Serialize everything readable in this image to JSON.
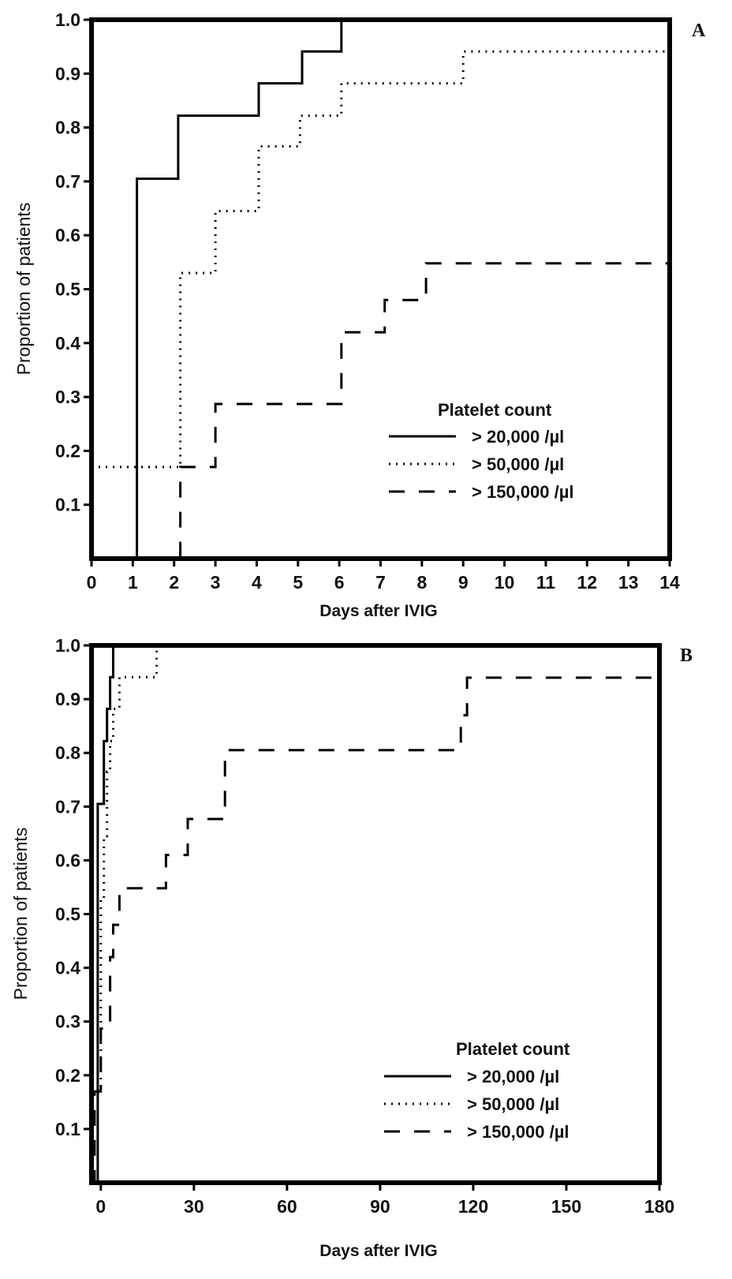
{
  "chart_data": [
    {
      "type": "line",
      "panel_label": "A",
      "xlabel": "Days after IVIG",
      "ylabel": "Proportion of patients",
      "xlim": [
        0,
        14
      ],
      "ylim": [
        0,
        1.0
      ],
      "xticks": [
        "0",
        "1",
        "2",
        "3",
        "4",
        "5",
        "6",
        "7",
        "8",
        "9",
        "10",
        "11",
        "12",
        "13",
        "14"
      ],
      "yticks": [
        "0.1",
        "0.2",
        "0.3",
        "0.4",
        "0.5",
        "0.6",
        "0.7",
        "0.8",
        "0.9",
        "1.0"
      ],
      "grid": false,
      "legend": {
        "title": "Platelet count",
        "position": "bottom-right",
        "entries": [
          "> 20,000 /µl",
          "> 50,000 /µl",
          "> 150,000 /µl"
        ]
      },
      "series": [
        {
          "name": "> 20,000 /µl",
          "style": "solid",
          "x": [
            0,
            1.1,
            2.1,
            4.05,
            5.1,
            6.05,
            14
          ],
          "y": [
            0,
            0.705,
            0.822,
            0.882,
            0.941,
            1.0,
            1.0
          ]
        },
        {
          "name": "> 50,000 /µl",
          "style": "dotted",
          "x": [
            0,
            2.15,
            3.0,
            4.05,
            5.05,
            6.05,
            9.0,
            14
          ],
          "y": [
            0.17,
            0.53,
            0.645,
            0.765,
            0.822,
            0.882,
            0.941,
            0.941
          ]
        },
        {
          "name": "> 150,000 /µl",
          "style": "dashed",
          "x": [
            0,
            2.15,
            3.0,
            6.05,
            7.1,
            8.1,
            14
          ],
          "y": [
            0,
            0.17,
            0.287,
            0.42,
            0.48,
            0.548,
            0.548
          ]
        }
      ]
    },
    {
      "type": "line",
      "panel_label": "B",
      "xlabel": "Days after IVIG",
      "ylabel": "Proportion of patients",
      "xlim": [
        -3,
        180
      ],
      "ylim": [
        0,
        1.0
      ],
      "xticks": [
        "0",
        "30",
        "60",
        "90",
        "120",
        "150",
        "180"
      ],
      "yticks": [
        "0.1",
        "0.2",
        "0.3",
        "0.4",
        "0.5",
        "0.6",
        "0.7",
        "0.8",
        "0.9",
        "1.0"
      ],
      "grid": false,
      "legend": {
        "title": "Platelet count",
        "position": "bottom-right",
        "entries": [
          "> 20,000 /µl",
          "> 50,000 /µl",
          "> 150,000 /µl"
        ]
      },
      "series": [
        {
          "name": "> 20,000 /µl",
          "style": "solid",
          "x": [
            -3,
            -2,
            -1,
            1,
            2,
            3,
            4,
            180
          ],
          "y": [
            0,
            0,
            0.705,
            0.822,
            0.882,
            0.941,
            1.0,
            1.0
          ]
        },
        {
          "name": "> 50,000 /µl",
          "style": "dotted",
          "x": [
            -3,
            -1,
            0,
            1,
            2,
            3,
            4,
            6,
            18,
            180
          ],
          "y": [
            0.17,
            0.17,
            0.53,
            0.645,
            0.765,
            0.822,
            0.882,
            0.941,
            1.0,
            1.0
          ]
        },
        {
          "name": "> 150,000 /µl",
          "style": "dashed",
          "x": [
            -3,
            -2,
            0,
            3,
            4,
            6,
            21,
            28,
            40,
            116,
            118,
            180
          ],
          "y": [
            0,
            0.17,
            0.287,
            0.42,
            0.48,
            0.548,
            0.61,
            0.677,
            0.805,
            0.87,
            0.94,
            0.94
          ]
        }
      ]
    }
  ]
}
